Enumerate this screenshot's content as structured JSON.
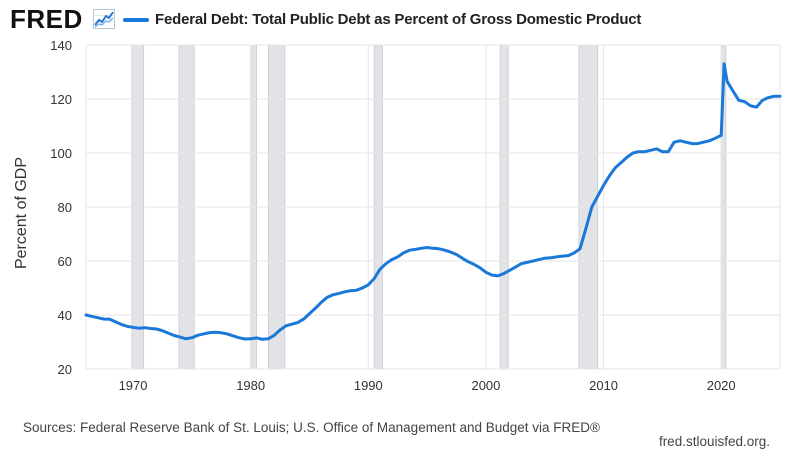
{
  "brand": {
    "name": "FRED",
    "series_color": "#1a78d8",
    "recession_color": "#e1e3e7"
  },
  "chart_data": {
    "type": "line",
    "title": "Federal Debt: Total Public Debt as Percent of Gross Domestic Product",
    "xlabel": "",
    "ylabel": "Percent of GDP",
    "xlim": [
      1966.0,
      2025.0
    ],
    "ylim": [
      20,
      140
    ],
    "yticks": [
      20,
      40,
      60,
      80,
      100,
      120,
      140
    ],
    "xticks": [
      1970,
      1980,
      1990,
      2000,
      2010,
      2020
    ],
    "grid": true,
    "legend": "top-left",
    "series": [
      {
        "name": "Federal Debt: Total Public Debt as Percent of Gross Domestic Product",
        "x": [
          1966.0,
          1966.5,
          1967.0,
          1967.5,
          1968.0,
          1968.5,
          1969.0,
          1969.5,
          1970.0,
          1970.5,
          1971.0,
          1971.5,
          1972.0,
          1972.5,
          1973.0,
          1973.5,
          1974.0,
          1974.5,
          1975.0,
          1975.5,
          1976.0,
          1976.5,
          1977.0,
          1977.5,
          1978.0,
          1978.5,
          1979.0,
          1979.5,
          1980.0,
          1980.5,
          1981.0,
          1981.5,
          1982.0,
          1982.5,
          1983.0,
          1983.5,
          1984.0,
          1984.5,
          1985.0,
          1985.5,
          1986.0,
          1986.5,
          1987.0,
          1987.5,
          1988.0,
          1988.5,
          1989.0,
          1989.5,
          1990.0,
          1990.5,
          1991.0,
          1991.5,
          1992.0,
          1992.5,
          1993.0,
          1993.5,
          1994.0,
          1994.5,
          1995.0,
          1995.5,
          1996.0,
          1996.5,
          1997.0,
          1997.5,
          1998.0,
          1998.5,
          1999.0,
          1999.5,
          2000.0,
          2000.5,
          2001.0,
          2001.5,
          2002.0,
          2002.5,
          2003.0,
          2003.5,
          2004.0,
          2004.5,
          2005.0,
          2005.5,
          2006.0,
          2006.5,
          2007.0,
          2007.5,
          2008.0,
          2008.5,
          2009.0,
          2009.5,
          2010.0,
          2010.5,
          2011.0,
          2011.5,
          2012.0,
          2012.5,
          2013.0,
          2013.5,
          2014.0,
          2014.5,
          2015.0,
          2015.5,
          2016.0,
          2016.5,
          2017.0,
          2017.5,
          2018.0,
          2018.5,
          2019.0,
          2019.5,
          2020.0,
          2020.25,
          2020.5,
          2021.0,
          2021.5,
          2022.0,
          2022.5,
          2023.0,
          2023.5,
          2024.0,
          2024.5,
          2025.0
        ],
        "values": [
          40.0,
          39.5,
          39.0,
          38.5,
          38.5,
          37.5,
          36.5,
          35.8,
          35.4,
          35.1,
          35.3,
          35.0,
          34.8,
          34.2,
          33.3,
          32.4,
          31.8,
          31.2,
          31.6,
          32.5,
          33.0,
          33.5,
          33.6,
          33.4,
          33.0,
          32.3,
          31.6,
          31.1,
          31.2,
          31.5,
          31.0,
          31.2,
          32.5,
          34.5,
          36.0,
          36.6,
          37.2,
          38.5,
          40.5,
          42.5,
          44.7,
          46.5,
          47.5,
          48.0,
          48.6,
          49.0,
          49.2,
          50.0,
          51.2,
          53.5,
          57.0,
          59.0,
          60.5,
          61.5,
          63.0,
          64.0,
          64.3,
          64.7,
          65.0,
          64.7,
          64.5,
          64.0,
          63.3,
          62.4,
          61.0,
          59.7,
          58.7,
          57.5,
          55.8,
          54.8,
          54.5,
          55.3,
          56.5,
          57.7,
          59.0,
          59.5,
          60.0,
          60.5,
          61.0,
          61.2,
          61.5,
          61.8,
          62.0,
          63.0,
          64.5,
          72.0,
          80.0,
          84.0,
          88.0,
          91.5,
          94.5,
          96.5,
          98.5,
          100.0,
          100.5,
          100.5,
          101.0,
          101.5,
          100.5,
          100.5,
          104.0,
          104.5,
          104.0,
          103.5,
          103.5,
          104.0,
          104.5,
          105.5,
          106.5,
          133.0,
          126.5,
          123.0,
          119.5,
          119.0,
          117.5,
          117.0,
          119.5,
          120.5,
          121.0,
          121.0
        ]
      }
    ],
    "recessions": [
      [
        1969.9,
        1970.9
      ],
      [
        1973.9,
        1975.2
      ],
      [
        1980.0,
        1980.5
      ],
      [
        1981.5,
        1982.9
      ],
      [
        1990.5,
        1991.2
      ],
      [
        2001.2,
        2001.9
      ],
      [
        2007.9,
        2009.5
      ],
      [
        2020.0,
        2020.4
      ]
    ]
  },
  "footer": {
    "source": "Sources: Federal Reserve Bank of St. Louis; U.S. Office of Management and Budget via FRED®",
    "site": "fred.stlouisfed.org."
  }
}
